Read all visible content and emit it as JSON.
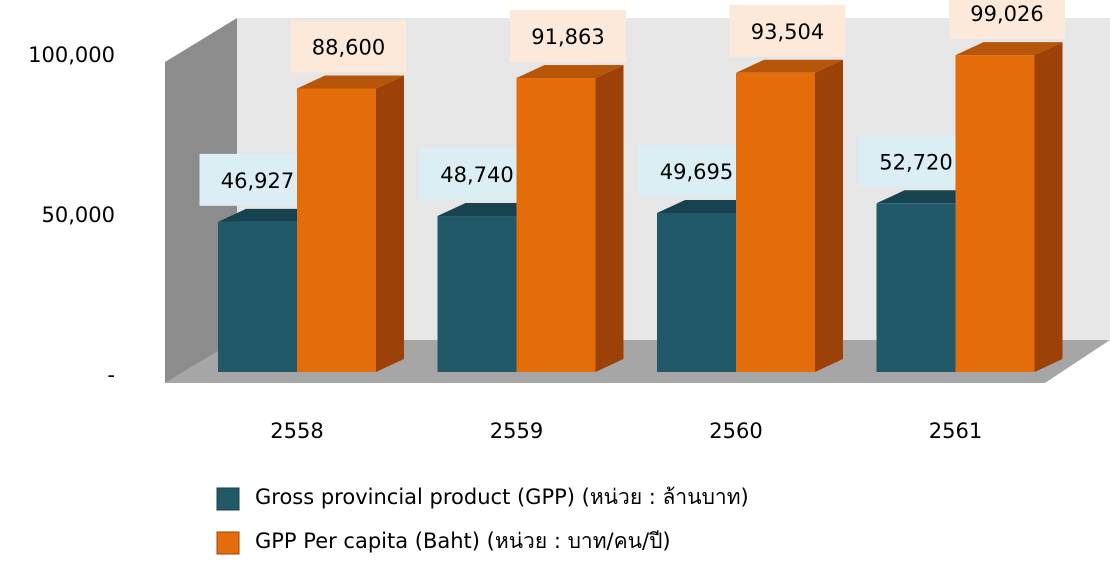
{
  "chart_data": {
    "type": "bar3d",
    "categories": [
      "2558",
      "2559",
      "2560",
      "2561"
    ],
    "series": [
      {
        "name": "Gross provincial product (GPP) (หน่วย : ล้านบาท)",
        "color": "#215968",
        "values": [
          46927,
          48740,
          49695,
          52720
        ],
        "value_labels": [
          "46,927",
          "48,740",
          "49,695",
          "52,720"
        ]
      },
      {
        "name": "GPP Per capita (Baht) (หน่วย : บาท/คน/ปี)",
        "color": "#e46c0a",
        "values": [
          88600,
          91863,
          93504,
          99026
        ],
        "value_labels": [
          "88,600",
          "91,863",
          "93,504",
          "99,026"
        ]
      }
    ],
    "ylim": [
      0,
      110000
    ],
    "yticks": [
      {
        "value": 0,
        "label": "-"
      },
      {
        "value": 50000,
        "label": "50,000"
      },
      {
        "value": 100000,
        "label": "100,000"
      }
    ]
  }
}
